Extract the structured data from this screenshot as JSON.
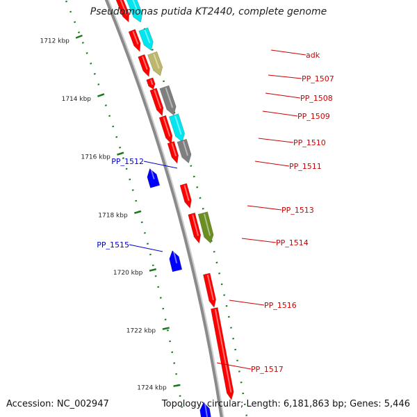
{
  "title": "Pseudomonas putida KT2440, complete genome",
  "accession": "Accession: NC_002947",
  "summary": "Topology: circular; Length: 6,181,863 bp; Genes: 5,446",
  "colors": {
    "red": "#ff0000",
    "blue": "#0000ff",
    "cyan": "#00e5ee",
    "khaki": "#bdb76b",
    "gray": "#7f7f7f",
    "olive": "#6b8e23",
    "tick": "#1a7a1a",
    "backbone": "#8a8a8a"
  },
  "ticks": [
    "1712 kbp",
    "1714 kbp",
    "1716 kbp",
    "1718 kbp",
    "1720 kbp",
    "1722 kbp",
    "1724 kbp"
  ],
  "genes": [
    {
      "label": "",
      "strand": "plus",
      "color": "red"
    },
    {
      "label": "",
      "strand": "plus",
      "color": "cyan"
    },
    {
      "label": "adk",
      "strand": "plus",
      "color": "red"
    },
    {
      "label": "",
      "strand": "plus",
      "color": "cyan"
    },
    {
      "label": "PP_1507",
      "strand": "plus",
      "color": "red"
    },
    {
      "label": "",
      "strand": "plus",
      "color": "khaki"
    },
    {
      "label": "PP_1508",
      "strand": "plus",
      "color": "red"
    },
    {
      "label": "PP_1509",
      "strand": "plus",
      "color": "red"
    },
    {
      "label": "",
      "strand": "plus",
      "color": "gray"
    },
    {
      "label": "PP_1510",
      "strand": "plus",
      "color": "red"
    },
    {
      "label": "",
      "strand": "plus",
      "color": "cyan"
    },
    {
      "label": "PP_1511",
      "strand": "plus",
      "color": "red"
    },
    {
      "label": "",
      "strand": "plus",
      "color": "gray"
    },
    {
      "label": "PP_1512",
      "strand": "minus",
      "color": "blue"
    },
    {
      "label": "PP_1513",
      "strand": "plus",
      "color": "red"
    },
    {
      "label": "PP_1514",
      "strand": "plus",
      "color": "red"
    },
    {
      "label": "",
      "strand": "plus",
      "color": "olive"
    },
    {
      "label": "PP_1515",
      "strand": "minus",
      "color": "blue"
    },
    {
      "label": "PP_1516",
      "strand": "plus",
      "color": "red"
    },
    {
      "label": "PP_1517",
      "strand": "plus",
      "color": "red"
    },
    {
      "label": "",
      "strand": "minus",
      "color": "blue"
    }
  ]
}
